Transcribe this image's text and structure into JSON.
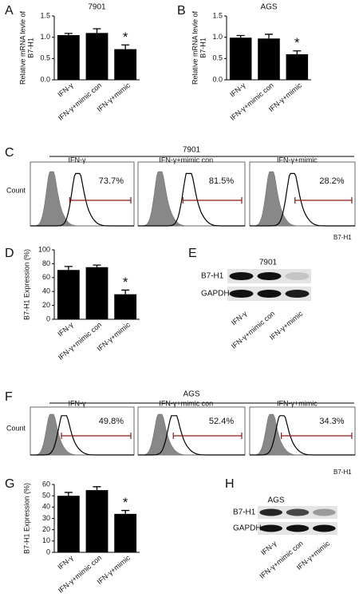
{
  "panel_labels": [
    "A",
    "B",
    "C",
    "D",
    "E",
    "F",
    "G",
    "H"
  ],
  "chart_data": [
    {
      "type": "bar",
      "title": "7901",
      "ylabel": [
        "Relative mRNA levle of",
        "B7-H1"
      ],
      "categories": [
        "IFN-γ",
        "IFN-γ+mimic  con",
        "IFN-γ+mimic"
      ],
      "values": [
        1.05,
        1.1,
        0.72
      ],
      "errors": [
        0.04,
        0.1,
        0.1
      ],
      "color": "#000000",
      "ylim": [
        0,
        1.5
      ],
      "yticks": [
        {
          "value": 0,
          "label": "0.0"
        },
        {
          "value": 0.5,
          "label": "0.5"
        },
        {
          "value": 1,
          "label": "1.0"
        },
        {
          "value": 1.5,
          "label": "1.5"
        }
      ],
      "annotation": "*"
    },
    {
      "type": "bar",
      "title": "AGS",
      "ylabel": [
        "Relative mRNA levle of",
        "B7-H1"
      ],
      "categories": [
        "IFN-γ",
        "IFN-γ+mimic  con",
        "IFN-γ+mimic"
      ],
      "values": [
        0.99,
        0.97,
        0.6
      ],
      "errors": [
        0.05,
        0.1,
        0.08
      ],
      "color": "#000000",
      "ylim": [
        0,
        1.5
      ],
      "yticks": [
        {
          "value": 0,
          "label": "0.0"
        },
        {
          "value": 0.5,
          "label": "0.5"
        },
        {
          "value": 1,
          "label": "1.0"
        },
        {
          "value": 1.5,
          "label": "1.5"
        }
      ],
      "annotation": "*"
    },
    {
      "type": "bar",
      "ylabel": [
        "B7-H1 Expression (%)"
      ],
      "categories": [
        "IFN-γ",
        "IFN-γ+mimic  con",
        "IFN-γ+mimic"
      ],
      "values": [
        71,
        75,
        36
      ],
      "errors": [
        5,
        3,
        6
      ],
      "color": "#000000",
      "ylim": [
        0,
        100
      ],
      "yticks": [
        0,
        20,
        40,
        60,
        80,
        100
      ],
      "annotation": "*"
    },
    {
      "type": "bar",
      "ylabel": [
        "B7-H1 Expression (%)"
      ],
      "categories": [
        "IFN-γ",
        "IFN-γ+mimic  con",
        "IFN-γ+mimic"
      ],
      "values": [
        50,
        55,
        34
      ],
      "errors": [
        3,
        3,
        3
      ],
      "color": "#000000",
      "ylim": [
        0,
        60
      ],
      "yticks": [
        0,
        10,
        20,
        30,
        40,
        50,
        60
      ],
      "annotation": "*"
    }
  ],
  "flow_panels": [
    {
      "title": "7901",
      "count_label": "Count",
      "x_label": "B7-H1",
      "conditions": [
        "IFN-γ",
        "IFN-γ+mimic   con",
        "IFN-γ+mimic"
      ],
      "percentages": [
        "73.7%",
        "81.5%",
        "28.2%"
      ]
    },
    {
      "title": "AGS",
      "count_label": "Count",
      "x_label": "B7-H1",
      "conditions": [
        "IFN-γ",
        "IFN-γ+mimic   con",
        "IFN-γ+mimic"
      ],
      "percentages": [
        "49.8%",
        "52.4%",
        "34.3%"
      ]
    }
  ],
  "blots": [
    {
      "title": "7901",
      "rows": [
        "B7-H1",
        "GAPDH"
      ],
      "lanes": [
        "IFN-γ",
        "IFN-γ+mimic  con",
        "IFN-γ+mimic"
      ]
    },
    {
      "title": "AGS",
      "rows": [
        "B7-H1",
        "GAPDH"
      ],
      "lanes": [
        "IFN-γ",
        "IFN-γ+mimic  con",
        "IFN-γ+mimic"
      ]
    }
  ]
}
